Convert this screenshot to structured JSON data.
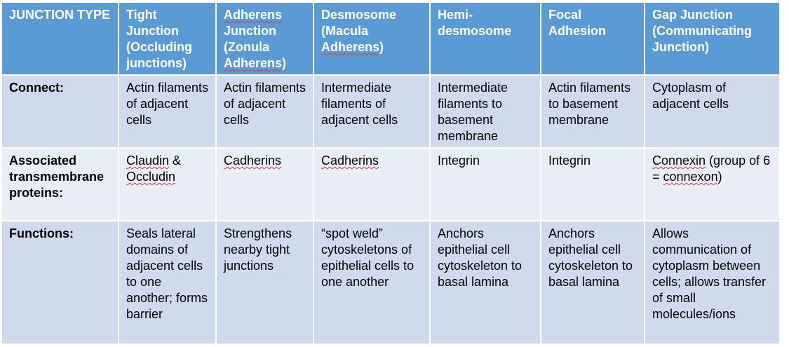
{
  "table": {
    "header": {
      "type": "JUNCTION TYPE",
      "tight": "Tight Junction (Occluding junctions)",
      "adherens_pre": "Adherens",
      "adherens_mid": " Junction (Zonula ",
      "adherens_post": "Adherens)",
      "desmosome_pre": "Desmosome (Macula ",
      "desmosome_post": "Adherens)",
      "hemi": "Hemi-desmosome",
      "focal": "Focal Adhesion",
      "gap": "Gap Junction (Communicating Junction)"
    },
    "connect": {
      "label": "Connect:",
      "tight": "Actin filaments of adjacent cells",
      "adherens": "Actin filaments of adjacent cells",
      "desmosome": "Intermediate filaments of adjacent cells",
      "hemi": "Intermediate filaments to basement membrane",
      "focal": "Actin filaments to basement membrane",
      "gap": "Cytoplasm of adjacent cells"
    },
    "proteins": {
      "label": "Associated transmembrane proteins:",
      "tight_w1": "Claudin",
      "tight_w2": " & ",
      "tight_w3": "Occludin",
      "adherens": "Cadherins",
      "desmosome": "Cadherins",
      "hemi": "Integrin",
      "focal": "Integrin",
      "gap_w1": "Connexin",
      "gap_w2": " (group of 6 = ",
      "gap_w3": "connexon",
      "gap_w4": ")"
    },
    "functions": {
      "label": "Functions:",
      "tight": "Seals lateral domains of adjacent cells to one another; forms barrier",
      "adherens": "Strengthens nearby tight junctions",
      "desmosome": "“spot weld” cytoskeletons of epithelial cells to one another",
      "hemi": "Anchors epithelial cell cytoskeleton to basal lamina",
      "focal": "Anchors epithelial cell cytoskeleton to basal lamina",
      "gap": "Allows communication of cytoplasm between cells; allows transfer of small molecules/ions"
    }
  },
  "colors": {
    "header_bg": "#5b9bd5",
    "row_dark": "#cfdbec",
    "row_light": "#e9eef6",
    "spellcheck": "#e03a3a"
  }
}
